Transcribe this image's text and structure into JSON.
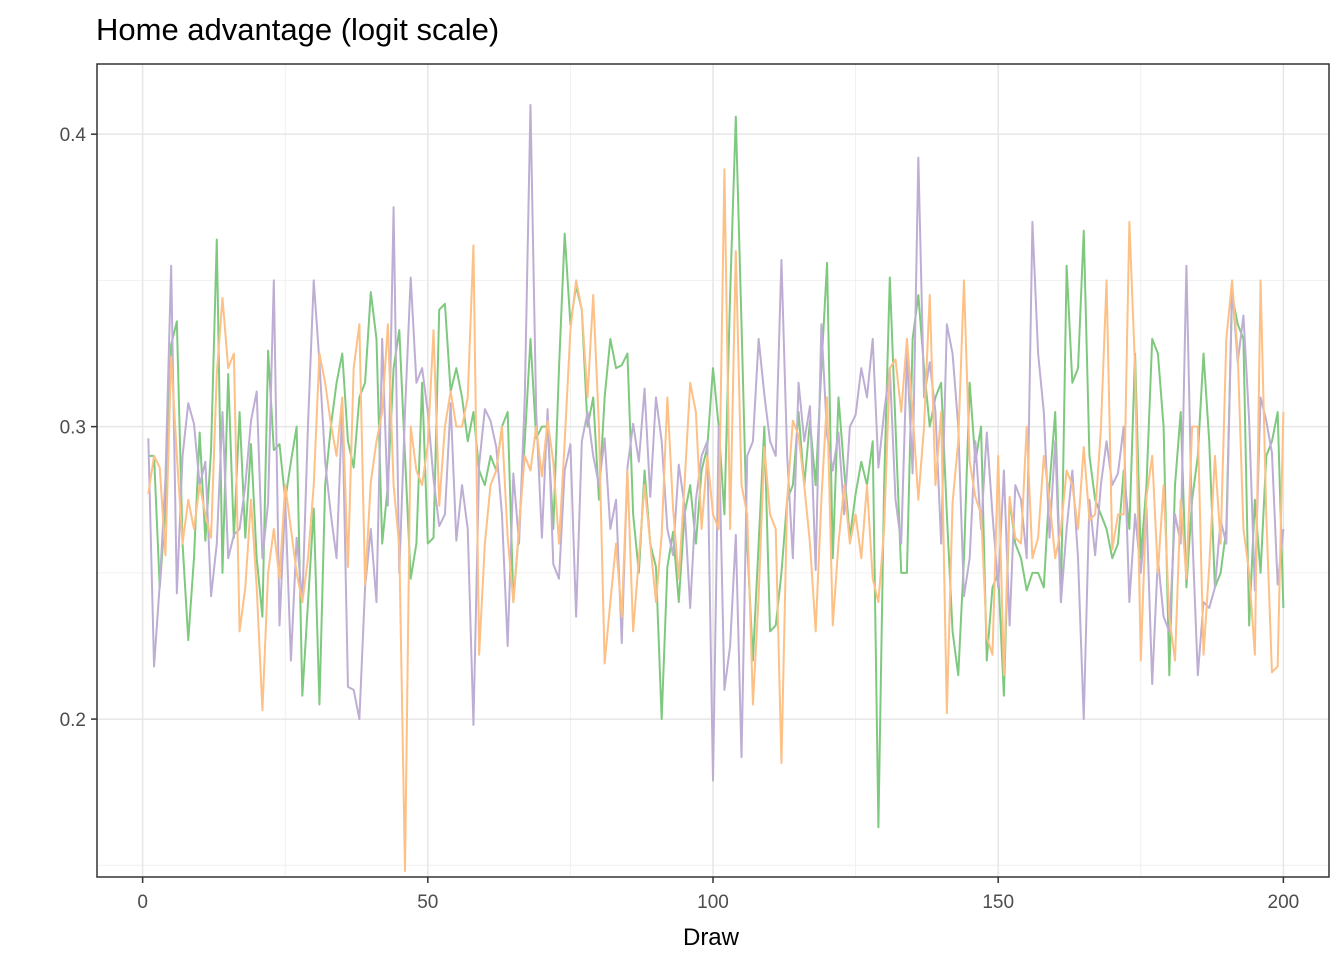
{
  "chart_data": {
    "type": "line",
    "title": "Home advantage (logit scale)",
    "xlabel": "Draw",
    "ylabel": "",
    "xlim": [
      -8,
      208
    ],
    "ylim": [
      0.146,
      0.424
    ],
    "x_ticks": [
      0,
      50,
      100,
      150,
      200
    ],
    "x_tick_labels": [
      "0",
      "50",
      "100",
      "150",
      "200"
    ],
    "y_ticks": [
      0.2,
      0.3,
      0.4
    ],
    "y_tick_labels": [
      "0.2",
      "0.3",
      "0.4"
    ],
    "grid": true,
    "x": [
      1,
      2,
      3,
      4,
      5,
      6,
      7,
      8,
      9,
      10,
      11,
      12,
      13,
      14,
      15,
      16,
      17,
      18,
      19,
      20,
      21,
      22,
      23,
      24,
      25,
      26,
      27,
      28,
      29,
      30,
      31,
      32,
      33,
      34,
      35,
      36,
      37,
      38,
      39,
      40,
      41,
      42,
      43,
      44,
      45,
      46,
      47,
      48,
      49,
      50,
      51,
      52,
      53,
      54,
      55,
      56,
      57,
      58,
      59,
      60,
      61,
      62,
      63,
      64,
      65,
      66,
      67,
      68,
      69,
      70,
      71,
      72,
      73,
      74,
      75,
      76,
      77,
      78,
      79,
      80,
      81,
      82,
      83,
      84,
      85,
      86,
      87,
      88,
      89,
      90,
      91,
      92,
      93,
      94,
      95,
      96,
      97,
      98,
      99,
      100,
      101,
      102,
      103,
      104,
      105,
      106,
      107,
      108,
      109,
      110,
      111,
      112,
      113,
      114,
      115,
      116,
      117,
      118,
      119,
      120,
      121,
      122,
      123,
      124,
      125,
      126,
      127,
      128,
      129,
      130,
      131,
      132,
      133,
      134,
      135,
      136,
      137,
      138,
      139,
      140,
      141,
      142,
      143,
      144,
      145,
      146,
      147,
      148,
      149,
      150,
      151,
      152,
      153,
      154,
      155,
      156,
      157,
      158,
      159,
      160,
      161,
      162,
      163,
      164,
      165,
      166,
      167,
      168,
      169,
      170,
      171,
      172,
      173,
      174,
      175,
      176,
      177,
      178,
      179,
      180,
      181,
      182,
      183,
      184,
      185,
      186,
      187,
      188,
      189,
      190,
      191,
      192,
      193,
      194,
      195,
      196,
      197,
      198,
      199,
      200
    ],
    "series": [
      {
        "color": "#7fc97f",
        "values": [
          0.29,
          0.29,
          0.245,
          0.272,
          0.328,
          0.336,
          0.26,
          0.227,
          0.255,
          0.298,
          0.261,
          0.292,
          0.364,
          0.25,
          0.318,
          0.262,
          0.305,
          0.262,
          0.294,
          0.255,
          0.235,
          0.326,
          0.292,
          0.294,
          0.275,
          0.288,
          0.3,
          0.208,
          0.24,
          0.272,
          0.205,
          0.28,
          0.3,
          0.315,
          0.325,
          0.295,
          0.286,
          0.31,
          0.315,
          0.346,
          0.33,
          0.26,
          0.28,
          0.32,
          0.333,
          0.29,
          0.248,
          0.26,
          0.315,
          0.26,
          0.262,
          0.34,
          0.342,
          0.312,
          0.32,
          0.31,
          0.295,
          0.305,
          0.285,
          0.28,
          0.29,
          0.285,
          0.3,
          0.305,
          0.24,
          0.265,
          0.295,
          0.33,
          0.296,
          0.3,
          0.3,
          0.265,
          0.32,
          0.366,
          0.335,
          0.348,
          0.34,
          0.3,
          0.31,
          0.275,
          0.31,
          0.33,
          0.32,
          0.321,
          0.325,
          0.27,
          0.25,
          0.285,
          0.26,
          0.252,
          0.2,
          0.252,
          0.264,
          0.24,
          0.27,
          0.28,
          0.26,
          0.285,
          0.293,
          0.32,
          0.3,
          0.27,
          0.345,
          0.406,
          0.335,
          0.26,
          0.22,
          0.26,
          0.3,
          0.23,
          0.232,
          0.25,
          0.275,
          0.28,
          0.305,
          0.28,
          0.302,
          0.28,
          0.32,
          0.356,
          0.255,
          0.31,
          0.285,
          0.262,
          0.277,
          0.288,
          0.28,
          0.295,
          0.163,
          0.28,
          0.351,
          0.3,
          0.25,
          0.25,
          0.33,
          0.345,
          0.32,
          0.3,
          0.31,
          0.315,
          0.27,
          0.23,
          0.215,
          0.255,
          0.315,
          0.288,
          0.3,
          0.22,
          0.245,
          0.25,
          0.208,
          0.275,
          0.26,
          0.255,
          0.244,
          0.25,
          0.25,
          0.245,
          0.28,
          0.305,
          0.24,
          0.355,
          0.315,
          0.32,
          0.367,
          0.29,
          0.275,
          0.27,
          0.265,
          0.255,
          0.26,
          0.285,
          0.265,
          0.325,
          0.255,
          0.28,
          0.33,
          0.325,
          0.3,
          0.215,
          0.28,
          0.305,
          0.245,
          0.275,
          0.29,
          0.325,
          0.295,
          0.245,
          0.25,
          0.265,
          0.345,
          0.335,
          0.33,
          0.232,
          0.275,
          0.25,
          0.29,
          0.295,
          0.305,
          0.238
        ]
      },
      {
        "color": "#beaed4",
        "values": [
          0.296,
          0.218,
          0.246,
          0.282,
          0.355,
          0.243,
          0.29,
          0.308,
          0.301,
          0.28,
          0.288,
          0.242,
          0.26,
          0.305,
          0.255,
          0.263,
          0.265,
          0.28,
          0.302,
          0.312,
          0.255,
          0.274,
          0.35,
          0.232,
          0.275,
          0.22,
          0.262,
          0.24,
          0.301,
          0.35,
          0.322,
          0.288,
          0.27,
          0.255,
          0.307,
          0.211,
          0.21,
          0.2,
          0.245,
          0.265,
          0.24,
          0.33,
          0.273,
          0.375,
          0.25,
          0.305,
          0.351,
          0.315,
          0.32,
          0.305,
          0.282,
          0.266,
          0.27,
          0.308,
          0.261,
          0.28,
          0.265,
          0.198,
          0.287,
          0.306,
          0.302,
          0.293,
          0.27,
          0.225,
          0.284,
          0.26,
          0.31,
          0.41,
          0.305,
          0.262,
          0.306,
          0.253,
          0.248,
          0.285,
          0.294,
          0.235,
          0.295,
          0.305,
          0.29,
          0.28,
          0.296,
          0.265,
          0.275,
          0.226,
          0.286,
          0.301,
          0.288,
          0.313,
          0.276,
          0.31,
          0.295,
          0.265,
          0.256,
          0.287,
          0.273,
          0.238,
          0.275,
          0.29,
          0.295,
          0.179,
          0.3,
          0.21,
          0.225,
          0.263,
          0.187,
          0.29,
          0.295,
          0.33,
          0.311,
          0.295,
          0.29,
          0.357,
          0.29,
          0.255,
          0.315,
          0.295,
          0.307,
          0.251,
          0.335,
          0.297,
          0.285,
          0.298,
          0.27,
          0.3,
          0.304,
          0.32,
          0.31,
          0.33,
          0.286,
          0.305,
          0.32,
          0.275,
          0.26,
          0.325,
          0.284,
          0.392,
          0.31,
          0.322,
          0.305,
          0.26,
          0.335,
          0.325,
          0.3,
          0.242,
          0.255,
          0.295,
          0.265,
          0.298,
          0.27,
          0.245,
          0.285,
          0.232,
          0.28,
          0.275,
          0.255,
          0.37,
          0.325,
          0.305,
          0.262,
          0.295,
          0.24,
          0.265,
          0.285,
          0.255,
          0.2,
          0.275,
          0.256,
          0.28,
          0.295,
          0.28,
          0.284,
          0.3,
          0.24,
          0.27,
          0.25,
          0.272,
          0.212,
          0.255,
          0.235,
          0.23,
          0.27,
          0.26,
          0.355,
          0.265,
          0.215,
          0.24,
          0.238,
          0.245,
          0.268,
          0.26,
          0.348,
          0.322,
          0.338,
          0.302,
          0.244,
          0.31,
          0.302,
          0.291,
          0.246,
          0.265
        ]
      },
      {
        "color": "#fdc086",
        "values": [
          0.277,
          0.29,
          0.286,
          0.256,
          0.324,
          0.29,
          0.26,
          0.275,
          0.265,
          0.28,
          0.27,
          0.262,
          0.318,
          0.344,
          0.32,
          0.325,
          0.23,
          0.245,
          0.275,
          0.245,
          0.203,
          0.25,
          0.265,
          0.248,
          0.28,
          0.265,
          0.25,
          0.24,
          0.255,
          0.28,
          0.325,
          0.315,
          0.301,
          0.29,
          0.31,
          0.252,
          0.32,
          0.335,
          0.246,
          0.281,
          0.295,
          0.305,
          0.335,
          0.28,
          0.259,
          0.148,
          0.3,
          0.285,
          0.28,
          0.294,
          0.333,
          0.273,
          0.3,
          0.312,
          0.3,
          0.3,
          0.31,
          0.362,
          0.222,
          0.26,
          0.28,
          0.285,
          0.3,
          0.262,
          0.24,
          0.266,
          0.29,
          0.285,
          0.3,
          0.283,
          0.302,
          0.288,
          0.26,
          0.295,
          0.333,
          0.35,
          0.34,
          0.31,
          0.345,
          0.3,
          0.219,
          0.24,
          0.26,
          0.235,
          0.285,
          0.23,
          0.255,
          0.28,
          0.26,
          0.24,
          0.263,
          0.31,
          0.272,
          0.248,
          0.28,
          0.315,
          0.305,
          0.265,
          0.29,
          0.27,
          0.265,
          0.388,
          0.265,
          0.36,
          0.28,
          0.27,
          0.205,
          0.242,
          0.293,
          0.27,
          0.265,
          0.185,
          0.275,
          0.302,
          0.297,
          0.28,
          0.26,
          0.23,
          0.275,
          0.31,
          0.232,
          0.26,
          0.28,
          0.26,
          0.27,
          0.255,
          0.28,
          0.248,
          0.24,
          0.265,
          0.32,
          0.323,
          0.305,
          0.33,
          0.305,
          0.275,
          0.3,
          0.345,
          0.28,
          0.305,
          0.202,
          0.274,
          0.295,
          0.35,
          0.288,
          0.276,
          0.27,
          0.228,
          0.222,
          0.29,
          0.215,
          0.276,
          0.262,
          0.26,
          0.3,
          0.255,
          0.262,
          0.29,
          0.275,
          0.255,
          0.265,
          0.285,
          0.28,
          0.265,
          0.293,
          0.268,
          0.27,
          0.299,
          0.35,
          0.258,
          0.27,
          0.27,
          0.37,
          0.32,
          0.22,
          0.276,
          0.29,
          0.25,
          0.28,
          0.235,
          0.22,
          0.275,
          0.248,
          0.3,
          0.3,
          0.222,
          0.252,
          0.29,
          0.26,
          0.33,
          0.35,
          0.325,
          0.265,
          0.25,
          0.222,
          0.35,
          0.27,
          0.216,
          0.218,
          0.305
        ]
      }
    ]
  }
}
